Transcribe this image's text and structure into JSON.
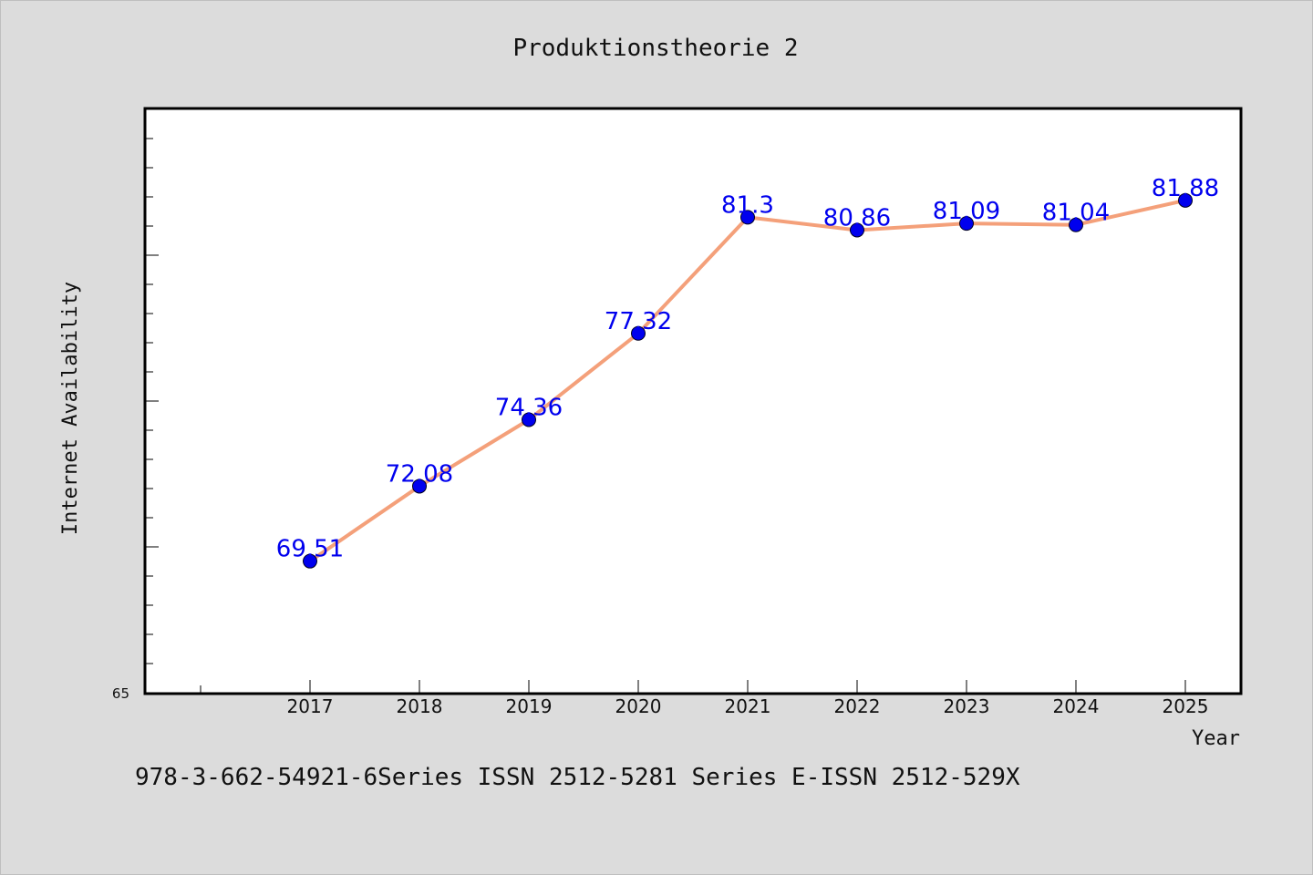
{
  "chart_data": {
    "type": "line",
    "title": "Produktionstheorie 2",
    "xlabel": "Year",
    "ylabel": "Internet Availability",
    "x": [
      "2017",
      "2018",
      "2019",
      "2020",
      "2021",
      "2022",
      "2023",
      "2024",
      "2025"
    ],
    "series": [
      {
        "values": [
          69.51,
          72.08,
          74.36,
          77.32,
          81.3,
          80.86,
          81.09,
          81.04,
          81.88
        ],
        "data_labels": [
          "69.51",
          "72.08",
          "74.36",
          "77.32",
          "81.3",
          "80.86",
          "81.09",
          "81.04",
          "81.88"
        ]
      }
    ],
    "ylim": [
      65,
      85
    ],
    "y_tick_labels": [
      "65"
    ],
    "grid": false,
    "legend": "none",
    "colors": {
      "line": "#f4a07a",
      "marker": "#0000ee",
      "data_label": "#0000ee",
      "background": "#dcdcdc",
      "plot_area": "#ffffff"
    }
  },
  "footer": {
    "text": "978-3-662-54921-6Series ISSN 2512-5281 Series E-ISSN 2512-529X"
  }
}
